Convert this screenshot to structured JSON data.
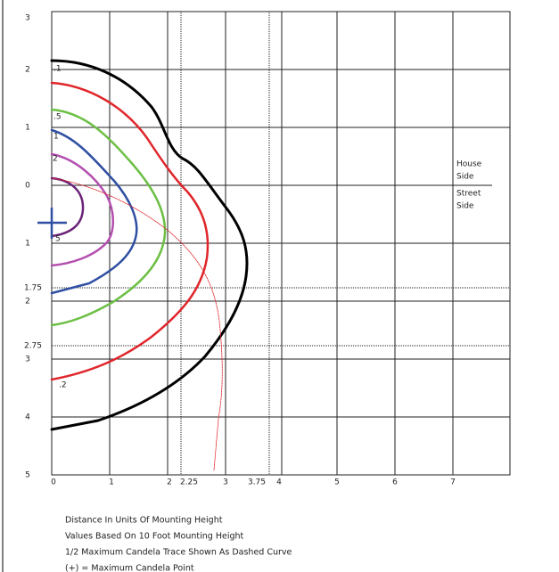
{
  "curve_labels": [
    ".1",
    ".5",
    "1",
    "2",
    "5",
    ".2"
  ],
  "y_labels": [
    "3",
    "2",
    "1",
    "0",
    "1",
    "1.75",
    "2",
    "2.75",
    "3",
    "4",
    "5"
  ],
  "x_labels": [
    "0",
    "1",
    "2",
    "2.25",
    "3",
    "3.75",
    "4",
    "5",
    "6",
    "7"
  ],
  "side_labels": {
    "house": [
      "House",
      "Side"
    ],
    "street": [
      "Street",
      "Side"
    ]
  },
  "notes": [
    "Distance In Units Of Mounting Height",
    "Values Based On 10 Foot Mounting Height",
    "1/2 Maximum Candela Trace Shown As Dashed Curve",
    "(+) = Maximum Candela Point"
  ]
}
